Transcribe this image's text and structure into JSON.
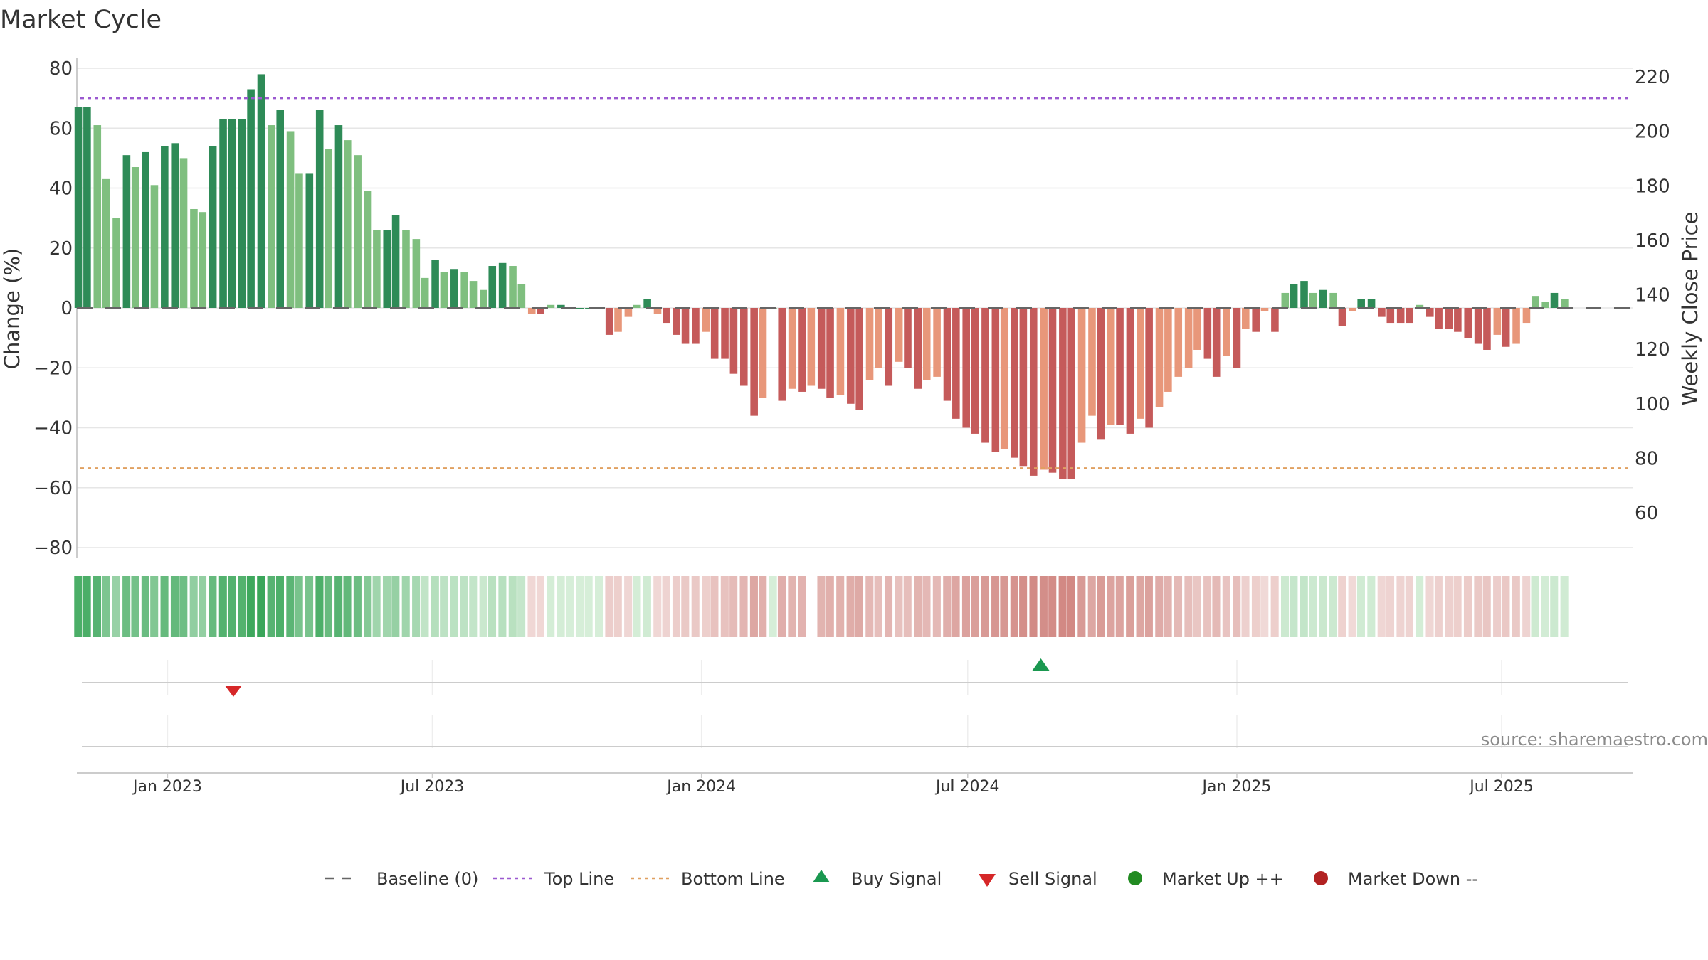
{
  "chart_data": {
    "title": "Market Cycle",
    "type": "bar",
    "ylabel": "Change (%)",
    "y2label": "Weekly Close Price",
    "ylim": [
      -80,
      80
    ],
    "yticks": [
      80,
      60,
      40,
      20,
      0,
      -20,
      -40,
      -60,
      -80
    ],
    "ytick_labels": [
      "80",
      "60",
      "40",
      "20",
      "0",
      "−20",
      "−40",
      "−60",
      "−80"
    ],
    "y2lim": [
      45,
      225
    ],
    "y2ticks": [
      220,
      200,
      180,
      160,
      140,
      120,
      100,
      80,
      60
    ],
    "top_line": 70,
    "bottom_line": -53.5,
    "x_start": "2022-10-31",
    "x_end": "2025-09-29",
    "xticks": [
      {
        "date": "2023-01-01",
        "label": "Jan 2023"
      },
      {
        "date": "2023-07-01",
        "label": "Jul 2023"
      },
      {
        "date": "2024-01-01",
        "label": "Jan 2024"
      },
      {
        "date": "2024-07-01",
        "label": "Jul 2024"
      },
      {
        "date": "2025-01-01",
        "label": "Jan 2025"
      },
      {
        "date": "2025-07-01",
        "label": "Jul 2025"
      }
    ],
    "bar_start_date": "2022-11-01",
    "bar_interval_days": 6.6,
    "values": [
      67,
      67,
      61,
      43,
      30,
      51,
      47,
      52,
      41,
      54,
      55,
      50,
      33,
      32,
      54,
      63,
      63,
      63,
      73,
      78,
      61,
      66,
      59,
      45,
      45,
      66,
      53,
      61,
      56,
      51,
      39,
      26,
      26,
      31,
      26,
      23,
      10,
      16,
      12,
      13,
      12,
      9,
      6,
      14,
      15,
      14,
      8,
      -2,
      -2,
      1,
      1,
      0,
      0,
      0,
      0,
      -9,
      -8,
      -3,
      1,
      3,
      -2,
      -5,
      -9,
      -12,
      -12,
      -8,
      -17,
      -17,
      -22,
      -26,
      -36,
      -30,
      0,
      -31,
      -27,
      -28,
      -26,
      -27,
      -30,
      -29,
      -32,
      -34,
      -24,
      -20,
      -26,
      -18,
      -20,
      -27,
      -24,
      -23,
      -31,
      -37,
      -40,
      -42,
      -45,
      -48,
      -47,
      -50,
      -53,
      -56,
      -54,
      -55,
      -57,
      -57,
      -45,
      -36,
      -44,
      -39,
      -39,
      -42,
      -37,
      -40,
      -33,
      -28,
      -23,
      -20,
      -14,
      -17,
      -23,
      -16,
      -20,
      -7,
      -8,
      -1,
      -8,
      5,
      8,
      9,
      5,
      6,
      5,
      -6,
      -1,
      3,
      3,
      -3,
      -5,
      -5,
      -5,
      1,
      -3,
      -7,
      -7,
      -8,
      -10,
      -12,
      -14,
      -9,
      -13,
      -12,
      -5,
      4,
      2,
      5,
      3
    ],
    "signals": [
      {
        "type": "sell",
        "date": "2023-02-15"
      },
      {
        "type": "buy",
        "date": "2024-08-20"
      }
    ],
    "gap_date": "2024-03-14",
    "colors": {
      "bar_strong_up": "#2e8b57",
      "bar_up": "#7fbf7f",
      "bar_strong_down": "#c55a5a",
      "bar_down": "#e8977a",
      "top_line": "#9b59d0",
      "bottom_line": "#e0a060",
      "baseline": "#666666",
      "grid": "#e6e6e6",
      "buy": "#1a9850",
      "sell": "#d62728",
      "market_up": "#228b22",
      "market_down": "#b22222"
    }
  },
  "source": "source: sharemaestro.com",
  "legend": [
    {
      "label": "Baseline (0)",
      "icon": "dash-line-icon"
    },
    {
      "label": "Top Line",
      "icon": "dotted-line-icon"
    },
    {
      "label": "Bottom Line",
      "icon": "dotted-line-icon"
    },
    {
      "label": "Buy Signal",
      "icon": "triangle-up-icon"
    },
    {
      "label": "Sell Signal",
      "icon": "triangle-down-icon"
    },
    {
      "label": "Market Up ++",
      "icon": "circle-icon"
    },
    {
      "label": "Market Down --",
      "icon": "circle-icon"
    }
  ]
}
